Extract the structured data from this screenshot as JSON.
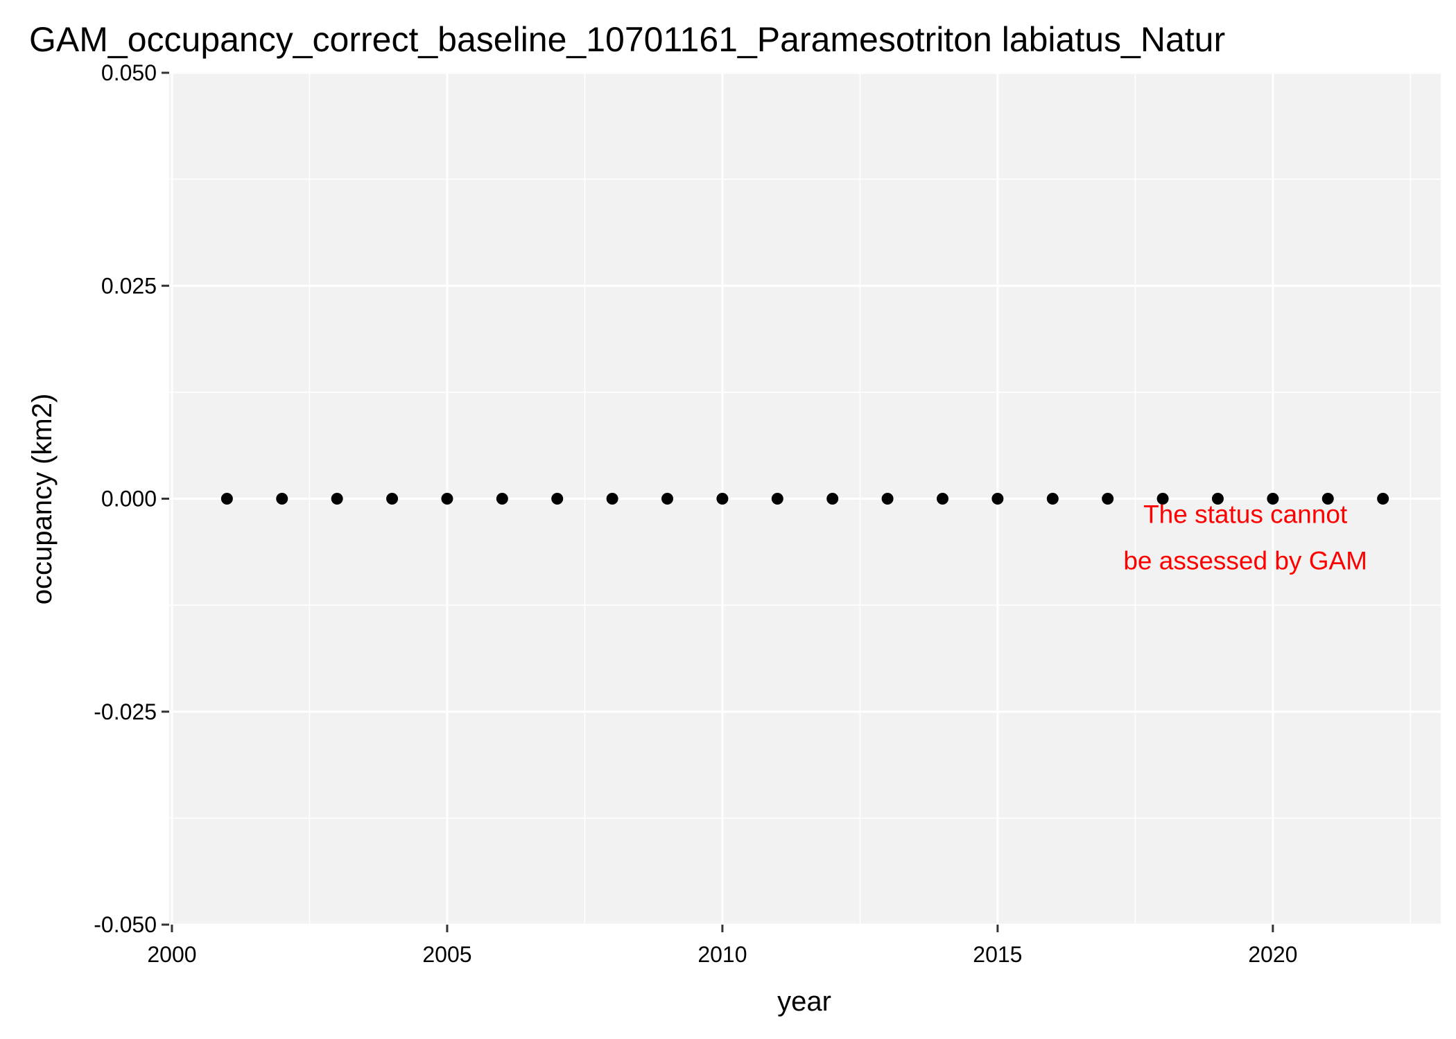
{
  "chart_data": {
    "type": "scatter",
    "title": "GAM_occupancy_correct_baseline_10701161_Paramesotriton labiatus_Natur",
    "xlabel": "year",
    "ylabel": "occupancy (km2)",
    "xlim": [
      1999.95,
      2023.05
    ],
    "ylim": [
      -0.05,
      0.05
    ],
    "x_ticks": [
      2000,
      2005,
      2010,
      2015,
      2020
    ],
    "x_tick_labels": [
      "2000",
      "2005",
      "2010",
      "2015",
      "2020"
    ],
    "y_ticks": [
      0.05,
      0.025,
      0.0,
      -0.025,
      -0.05
    ],
    "y_tick_labels": [
      "0.050",
      "0.025",
      "0.000",
      "-0.025",
      "-0.050"
    ],
    "x": [
      2001,
      2002,
      2003,
      2004,
      2005,
      2006,
      2007,
      2008,
      2009,
      2010,
      2011,
      2012,
      2013,
      2014,
      2015,
      2016,
      2017,
      2018,
      2019,
      2020,
      2021,
      2022
    ],
    "y": [
      0,
      0,
      0,
      0,
      0,
      0,
      0,
      0,
      0,
      0,
      0,
      0,
      0,
      0,
      0,
      0,
      0,
      0,
      0,
      0,
      0,
      0
    ],
    "annotation": {
      "lines": [
        "The status cannot",
        "be assessed by GAM"
      ],
      "x": 2019.5,
      "y": -0.0045,
      "color": "#ff0000"
    },
    "grid": true,
    "legend": "none",
    "colors": {
      "panel_background": "#f2f2f2",
      "gridline": "#ffffff",
      "point": "#000000",
      "annotation": "#ff0000"
    }
  }
}
